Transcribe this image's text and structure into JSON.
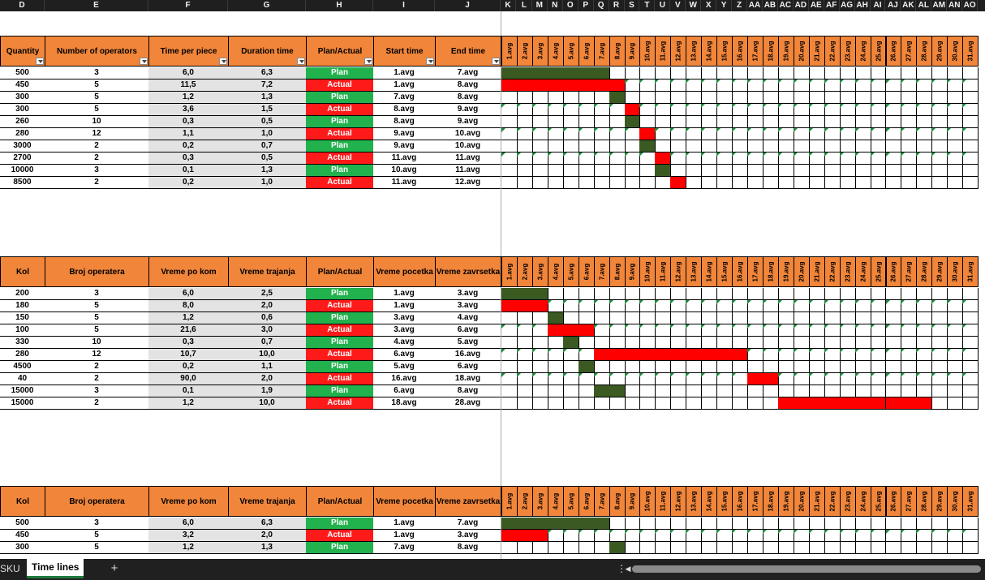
{
  "column_letters": [
    "D",
    "E",
    "F",
    "G",
    "H",
    "I",
    "J",
    "K",
    "L",
    "M",
    "N",
    "O",
    "P",
    "Q",
    "R",
    "S",
    "T",
    "U",
    "V",
    "W",
    "X",
    "Y",
    "Z",
    "AA",
    "AB",
    "AC",
    "AD",
    "AE",
    "AF",
    "AG",
    "AH",
    "AI",
    "AJ",
    "AK",
    "AL",
    "AM",
    "AN",
    "AO"
  ],
  "day_labels": [
    "1.avg",
    "2.avg",
    "3.avg",
    "4.avg",
    "5.avg",
    "6.avg",
    "7.avg",
    "8.avg",
    "9.avg",
    "10.avg",
    "11.avg",
    "12.avg",
    "13.avg",
    "14.avg",
    "15.avg",
    "16.avg",
    "17.avg",
    "18.avg",
    "19.avg",
    "20.avg",
    "21.avg",
    "22.avg",
    "23.avg",
    "24.avg",
    "25.avg",
    "26.avg",
    "27.avg",
    "28.avg",
    "29.avg",
    "30.avg",
    "31.avg"
  ],
  "tables": [
    {
      "headers": [
        "Quantity",
        "Number of operators",
        "Time per piece",
        "Duration time",
        "Plan/Actual",
        "Start time",
        "End time"
      ],
      "filters": true,
      "rows": [
        {
          "cells": [
            "500",
            "3",
            "6,0",
            "6,3",
            "Plan",
            "1.avg",
            "7.avg"
          ],
          "type": "plan",
          "bar": [
            1,
            7
          ],
          "tri": false
        },
        {
          "cells": [
            "450",
            "5",
            "11,5",
            "7,2",
            "Actual",
            "1.avg",
            "8.avg"
          ],
          "type": "actual",
          "bar": [
            1,
            8
          ],
          "tri": true
        },
        {
          "cells": [
            "300",
            "5",
            "1,2",
            "1,3",
            "Plan",
            "7.avg",
            "8.avg"
          ],
          "type": "plan",
          "bar": [
            8,
            8
          ],
          "tri": false
        },
        {
          "cells": [
            "300",
            "5",
            "3,6",
            "1,5",
            "Actual",
            "8.avg",
            "9.avg"
          ],
          "type": "actual",
          "bar": [
            9,
            9
          ],
          "tri": true
        },
        {
          "cells": [
            "260",
            "10",
            "0,3",
            "0,5",
            "Plan",
            "8.avg",
            "9.avg"
          ],
          "type": "plan",
          "bar": [
            9,
            9
          ],
          "tri": false
        },
        {
          "cells": [
            "280",
            "12",
            "1,1",
            "1,0",
            "Actual",
            "9.avg",
            "10.avg"
          ],
          "type": "actual",
          "bar": [
            10,
            10
          ],
          "tri": true
        },
        {
          "cells": [
            "3000",
            "2",
            "0,2",
            "0,7",
            "Plan",
            "9.avg",
            "10.avg"
          ],
          "type": "plan",
          "bar": [
            10,
            10
          ],
          "tri": false
        },
        {
          "cells": [
            "2700",
            "2",
            "0,3",
            "0,5",
            "Actual",
            "11.avg",
            "11.avg"
          ],
          "type": "actual",
          "bar": [
            11,
            11
          ],
          "tri": true
        },
        {
          "cells": [
            "10000",
            "3",
            "0,1",
            "1,3",
            "Plan",
            "10.avg",
            "11.avg"
          ],
          "type": "plan",
          "bar": [
            11,
            11
          ],
          "tri": false
        },
        {
          "cells": [
            "8500",
            "2",
            "0,2",
            "1,0",
            "Actual",
            "11.avg",
            "12.avg"
          ],
          "type": "actual",
          "bar": [
            12,
            12
          ],
          "tri": false
        }
      ]
    },
    {
      "headers": [
        "Kol",
        "Broj operatera",
        "Vreme po kom",
        "Vreme trajanja",
        "Plan/Actual",
        "Vreme pocetka",
        "Vreme zavrsetka"
      ],
      "filters": false,
      "rows": [
        {
          "cells": [
            "200",
            "3",
            "6,0",
            "2,5",
            "Plan",
            "1.avg",
            "3.avg"
          ],
          "type": "plan",
          "bar": [
            1,
            3
          ],
          "tri": false
        },
        {
          "cells": [
            "180",
            "5",
            "8,0",
            "2,0",
            "Actual",
            "1.avg",
            "3.avg"
          ],
          "type": "actual",
          "bar": [
            1,
            3
          ],
          "tri": true
        },
        {
          "cells": [
            "150",
            "5",
            "1,2",
            "0,6",
            "Plan",
            "3.avg",
            "4.avg"
          ],
          "type": "plan",
          "bar": [
            4,
            4
          ],
          "tri": false
        },
        {
          "cells": [
            "100",
            "5",
            "21,6",
            "3,0",
            "Actual",
            "3.avg",
            "6.avg"
          ],
          "type": "actual",
          "bar": [
            4,
            6
          ],
          "tri": true
        },
        {
          "cells": [
            "330",
            "10",
            "0,3",
            "0,7",
            "Plan",
            "4.avg",
            "5.avg"
          ],
          "type": "plan",
          "bar": [
            5,
            5
          ],
          "tri": false
        },
        {
          "cells": [
            "280",
            "12",
            "10,7",
            "10,0",
            "Actual",
            "6.avg",
            "16.avg"
          ],
          "type": "actual",
          "bar": [
            7,
            16
          ],
          "tri": true
        },
        {
          "cells": [
            "4500",
            "2",
            "0,2",
            "1,1",
            "Plan",
            "5.avg",
            "6.avg"
          ],
          "type": "plan",
          "bar": [
            6,
            6
          ],
          "tri": false
        },
        {
          "cells": [
            "40",
            "2",
            "90,0",
            "2,0",
            "Actual",
            "16.avg",
            "18.avg"
          ],
          "type": "actual",
          "bar": [
            17,
            18
          ],
          "tri": true
        },
        {
          "cells": [
            "15000",
            "3",
            "0,1",
            "1,9",
            "Plan",
            "6.avg",
            "8.avg"
          ],
          "type": "plan",
          "bar": [
            7,
            8
          ],
          "tri": false
        },
        {
          "cells": [
            "15000",
            "2",
            "1,2",
            "10,0",
            "Actual",
            "18.avg",
            "28.avg"
          ],
          "type": "actual",
          "bar": [
            19,
            28
          ],
          "tri": false
        }
      ]
    },
    {
      "headers": [
        "Kol",
        "Broj operatera",
        "Vreme po kom",
        "Vreme trajanja",
        "Plan/Actual",
        "Vreme pocetka",
        "Vreme zavrsetka"
      ],
      "filters": false,
      "rows": [
        {
          "cells": [
            "500",
            "3",
            "6,0",
            "6,3",
            "Plan",
            "1.avg",
            "7.avg"
          ],
          "type": "plan",
          "bar": [
            1,
            7
          ],
          "tri": false
        },
        {
          "cells": [
            "450",
            "5",
            "3,2",
            "2,0",
            "Actual",
            "1.avg",
            "3.avg"
          ],
          "type": "actual",
          "bar": [
            1,
            3
          ],
          "tri": true
        },
        {
          "cells": [
            "300",
            "5",
            "1,2",
            "1,3",
            "Plan",
            "7.avg",
            "8.avg"
          ],
          "type": "plan",
          "bar": [
            8,
            8
          ],
          "tri": false
        }
      ]
    }
  ],
  "sheet_tabs": {
    "prev": "SKU",
    "active": "Time lines",
    "add": "+"
  },
  "colors": {
    "header": "#f1853a",
    "plan": "#21b14d",
    "actual": "#ff1a1a",
    "gantt_plan": "#3a5a22",
    "gantt_actual": "#ff0000"
  }
}
